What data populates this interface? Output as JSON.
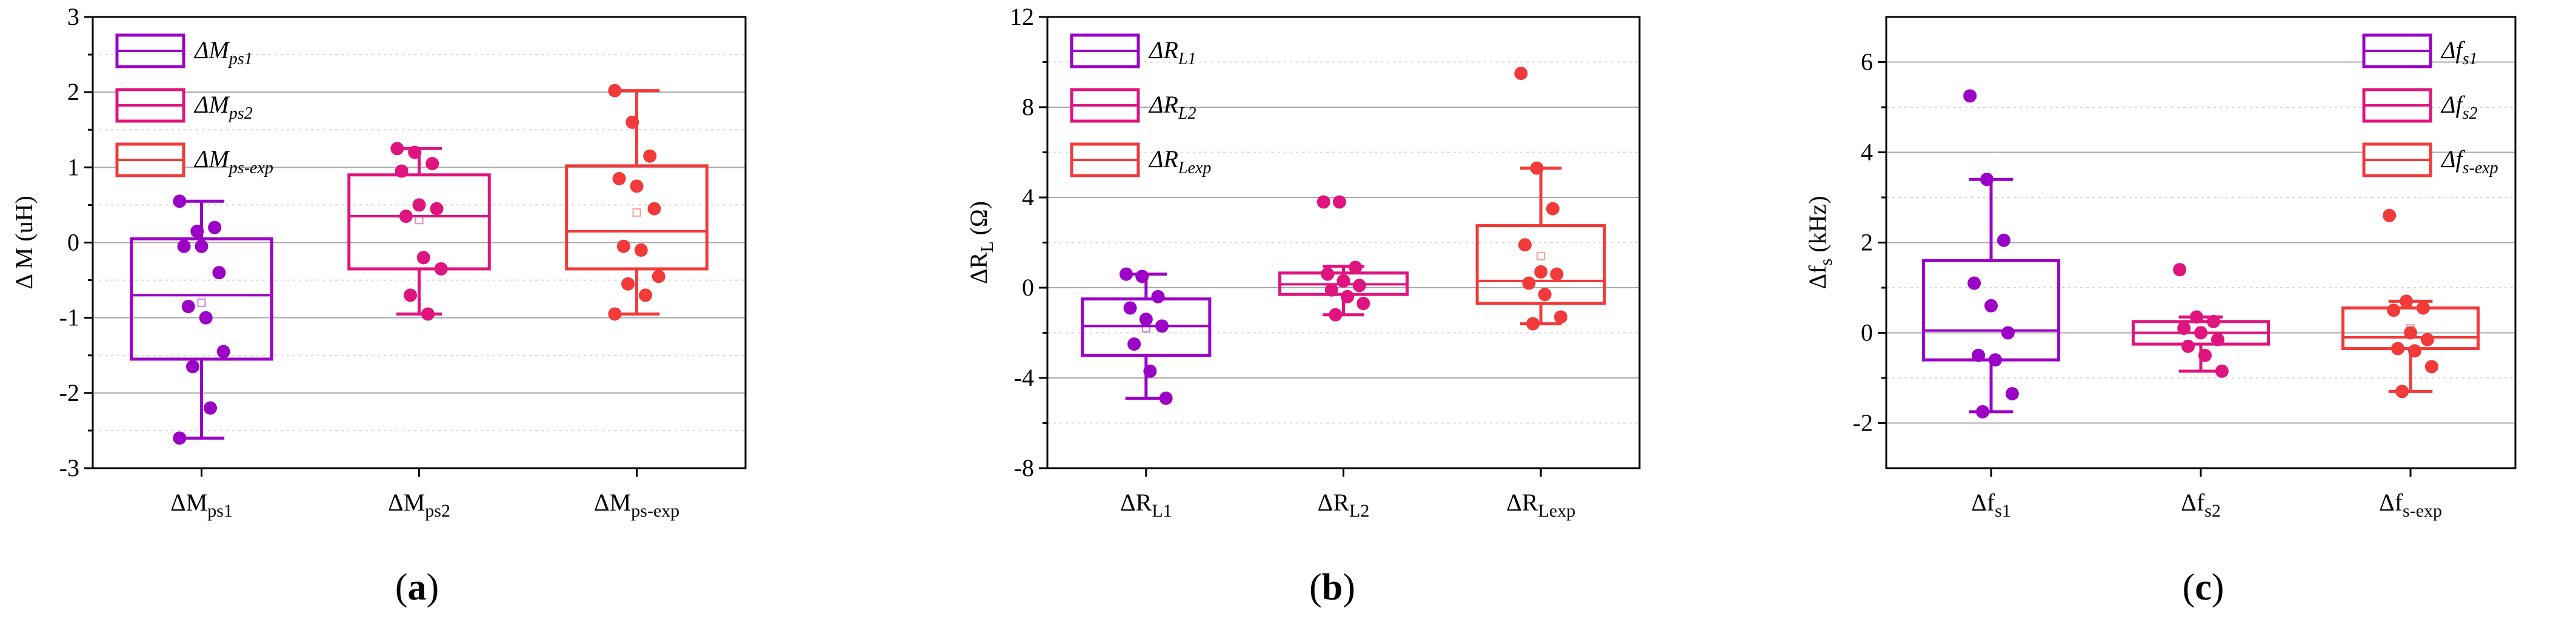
{
  "chart_data": [
    {
      "type": "box",
      "panel_label": "(a)",
      "ylabel_main": "Δ M (uH)",
      "ylim": [
        -3,
        3
      ],
      "yticks": [
        -3,
        -2,
        -1,
        0,
        1,
        2,
        3
      ],
      "ytick_labels": [
        "-3",
        "-2",
        "-1",
        "0",
        "1",
        "2",
        "3"
      ],
      "categories": [
        {
          "main": "ΔM",
          "sub": "ps1",
          "color": "#9B00C7"
        },
        {
          "main": "ΔM",
          "sub": "ps2",
          "color": "#E0147E"
        },
        {
          "main": "ΔM",
          "sub": "ps-exp",
          "color": "#F23A3A"
        }
      ],
      "legend": [
        {
          "main": "ΔM",
          "sub": "ps1"
        },
        {
          "main": "ΔM",
          "sub": "ps2"
        },
        {
          "main": "ΔM",
          "sub": "ps-exp"
        }
      ],
      "legend_position": "top-left",
      "boxes": [
        {
          "q1": -1.55,
          "median": -0.7,
          "q3": 0.05,
          "mean": -0.8,
          "whisker_low": -2.6,
          "whisker_high": 0.55,
          "points": [
            0.55,
            0.15,
            0.2,
            -0.05,
            -0.05,
            -0.4,
            -0.85,
            -1.0,
            -1.45,
            -1.65,
            -2.2,
            -2.6
          ]
        },
        {
          "q1": -0.35,
          "median": 0.35,
          "q3": 0.9,
          "mean": 0.3,
          "whisker_low": -0.95,
          "whisker_high": 1.25,
          "points": [
            1.25,
            1.2,
            1.05,
            0.95,
            0.5,
            0.45,
            0.35,
            -0.2,
            -0.35,
            -0.7,
            -0.95
          ]
        },
        {
          "q1": -0.35,
          "median": 0.15,
          "q3": 1.02,
          "mean": 0.4,
          "whisker_low": -0.95,
          "whisker_high": 2.02,
          "points": [
            2.02,
            1.6,
            1.15,
            0.85,
            0.75,
            0.45,
            -0.05,
            -0.1,
            -0.45,
            -0.55,
            -0.7,
            -0.95
          ]
        }
      ]
    },
    {
      "type": "box",
      "panel_label": "(b)",
      "ylabel_main": "ΔR",
      "ylabel_sub": "L",
      "ylabel_unit": " (Ω)",
      "ylim": [
        -8,
        12
      ],
      "yticks": [
        -8,
        -4,
        0,
        4,
        8,
        12
      ],
      "ytick_labels": [
        "-8",
        "-4",
        "0",
        "4",
        "8",
        "12"
      ],
      "categories": [
        {
          "main": "ΔR",
          "sub": "L1",
          "color": "#9B00C7"
        },
        {
          "main": "ΔR",
          "sub": "L2",
          "color": "#E0147E"
        },
        {
          "main": "ΔR",
          "sub": "Lexp",
          "color": "#F23A3A"
        }
      ],
      "legend": [
        {
          "main": "ΔR",
          "sub": "L1"
        },
        {
          "main": "ΔR",
          "sub": "L2"
        },
        {
          "main": "ΔR",
          "sub": "Lexp"
        }
      ],
      "legend_position": "top-left",
      "boxes": [
        {
          "q1": -3.0,
          "median": -1.7,
          "q3": -0.5,
          "mean": -1.8,
          "whisker_low": -4.9,
          "whisker_high": 0.6,
          "points": [
            0.6,
            0.5,
            -0.4,
            -0.9,
            -1.4,
            -1.7,
            -2.5,
            -3.7,
            -4.9
          ]
        },
        {
          "q1": -0.3,
          "median": 0.15,
          "q3": 0.65,
          "mean": 0.2,
          "whisker_low": -1.2,
          "whisker_high": 0.95,
          "points": [
            3.8,
            3.8,
            0.9,
            0.6,
            0.3,
            0.1,
            -0.1,
            -0.4,
            -0.7,
            -1.2
          ]
        },
        {
          "q1": -0.7,
          "median": 0.3,
          "q3": 2.75,
          "mean": 1.4,
          "whisker_low": -1.6,
          "whisker_high": 5.3,
          "points": [
            9.5,
            5.3,
            3.5,
            1.9,
            0.7,
            0.6,
            0.2,
            -0.3,
            -1.3,
            -1.6
          ]
        }
      ]
    },
    {
      "type": "box",
      "panel_label": "(c)",
      "ylabel_main": "Δf",
      "ylabel_sub": "s",
      "ylabel_unit": " (kHz)",
      "ylim": [
        -3,
        7
      ],
      "yticks": [
        -2,
        0,
        2,
        4,
        6
      ],
      "ytick_labels": [
        "-2",
        "0",
        "2",
        "4",
        "6"
      ],
      "categories": [
        {
          "main": "Δf",
          "sub": "s1",
          "color": "#9B00C7"
        },
        {
          "main": "Δf",
          "sub": "s2",
          "color": "#E0147E"
        },
        {
          "main": "Δf",
          "sub": "s-exp",
          "color": "#F23A3A"
        }
      ],
      "legend": [
        {
          "main": "Δf",
          "sub": "s1"
        },
        {
          "main": "Δf",
          "sub": "s2"
        },
        {
          "main": "Δf",
          "sub": "s-exp"
        }
      ],
      "legend_position": "top-right",
      "boxes": [
        {
          "q1": -0.6,
          "median": 0.05,
          "q3": 1.6,
          "mean": 0.6,
          "whisker_low": -1.75,
          "whisker_high": 3.4,
          "points": [
            5.25,
            3.4,
            2.05,
            1.1,
            0.6,
            0.0,
            -0.5,
            -0.6,
            -1.35,
            -1.75
          ]
        },
        {
          "q1": -0.25,
          "median": 0.0,
          "q3": 0.25,
          "mean": 0.05,
          "whisker_low": -0.85,
          "whisker_high": 0.35,
          "points": [
            1.4,
            0.35,
            0.25,
            0.1,
            0.0,
            -0.15,
            -0.3,
            -0.5,
            -0.85
          ]
        },
        {
          "q1": -0.35,
          "median": -0.1,
          "q3": 0.55,
          "mean": 0.1,
          "whisker_low": -1.3,
          "whisker_high": 0.7,
          "points": [
            2.6,
            0.7,
            0.55,
            0.5,
            0.0,
            -0.15,
            -0.35,
            -0.4,
            -0.75,
            -1.3
          ]
        }
      ]
    }
  ]
}
